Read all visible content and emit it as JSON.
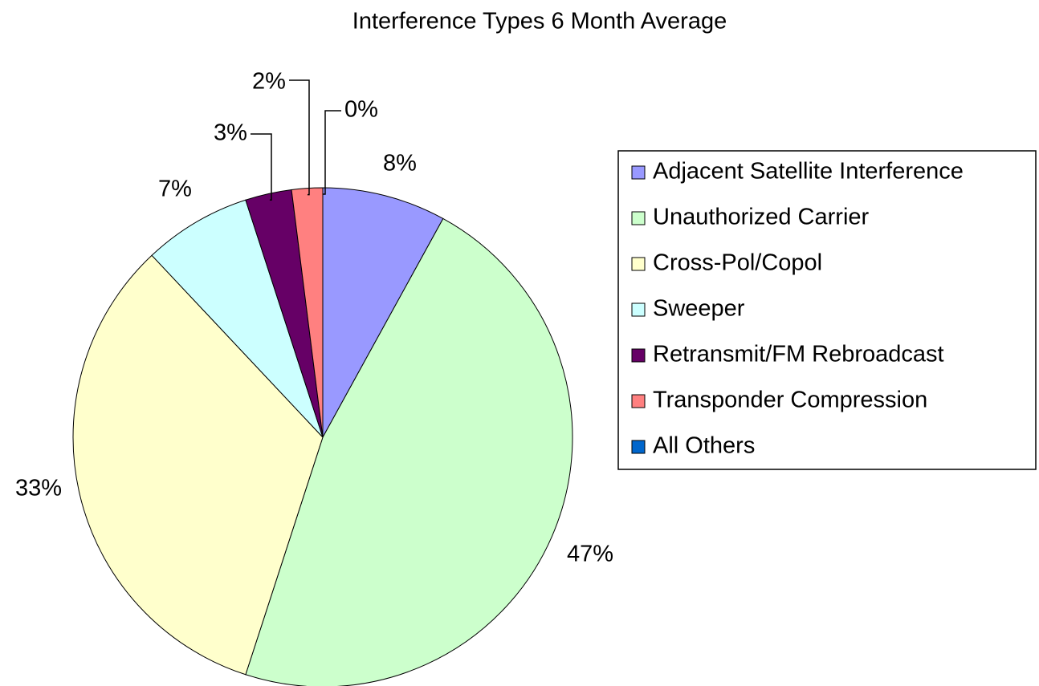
{
  "chart_data": {
    "type": "pie",
    "title": "Interference Types 6 Month Average",
    "categories": [
      "Adjacent Satellite Interference",
      "Unauthorized Carrier",
      "Cross-Pol/Copol",
      "Sweeper",
      "Retransmit/FM Rebroadcast",
      "Transponder Compression",
      "All Others"
    ],
    "values": [
      8,
      47,
      33,
      7,
      3,
      2,
      0
    ],
    "value_labels": [
      "8%",
      "47%",
      "33%",
      "7%",
      "3%",
      "2%",
      "0%"
    ],
    "colors": [
      "#9999ff",
      "#ccffcc",
      "#ffffcc",
      "#ccffff",
      "#660066",
      "#ff8080",
      "#0066cc"
    ],
    "legend": "right"
  }
}
